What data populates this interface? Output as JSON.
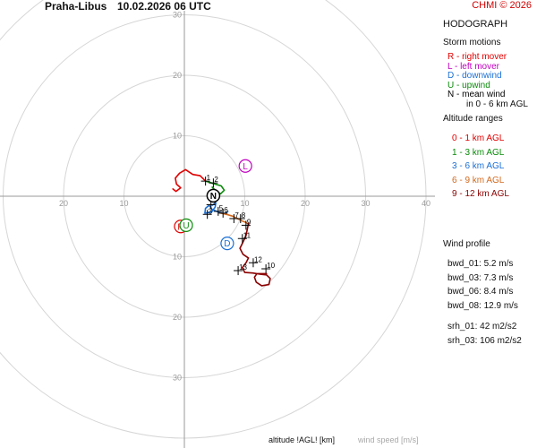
{
  "header": {
    "station": "Praha-Libus",
    "datetime": "10.02.2026 06 UTC",
    "copyright": "CHMI © 2026"
  },
  "panel": {
    "title": "HODOGRAPH",
    "storm_motions": {
      "title": "Storm motions",
      "items": [
        {
          "text": "R - right mover",
          "color": "#e00000"
        },
        {
          "text": "L - left mover",
          "color": "#c000c0"
        },
        {
          "text": "D - downwind",
          "color": "#1a6fd6"
        },
        {
          "text": "U - upwind",
          "color": "#0a8a0a"
        },
        {
          "text": "N - mean wind",
          "color": "#000000"
        }
      ],
      "mean_wind_note": "in 0 - 6 km AGL"
    },
    "altitude_ranges": {
      "title": "Altitude ranges",
      "items": [
        {
          "text": "0 - 1 km AGL",
          "color": "#e00000"
        },
        {
          "text": "1 - 3 km AGL",
          "color": "#0a8a0a"
        },
        {
          "text": "3 - 6 km AGL",
          "color": "#1a6fd6"
        },
        {
          "text": "6 - 9 km AGL",
          "color": "#d2691e"
        },
        {
          "text": "9 - 12 km AGL",
          "color": "#8b0000"
        }
      ]
    },
    "wind_profile": {
      "title": "Wind profile",
      "bwd": [
        "bwd_01: 5.2 m/s",
        "bwd_03: 7.3 m/s",
        "bwd_06: 8.4 m/s",
        "bwd_08: 12.9 m/s"
      ],
      "srh": [
        "srh_01: 42 m2/s2",
        "srh_03: 106 m2/s2"
      ]
    }
  },
  "footer": {
    "altitude_label": "altitude !AGL! [km]",
    "speed_label": "wind speed [m/s]"
  },
  "chart_data": {
    "type": "hodograph",
    "rings": [
      10,
      20,
      30,
      40
    ],
    "axis_labels": {
      "x": [
        "20",
        "10",
        "10",
        "20",
        "30",
        "40"
      ],
      "y": [
        "30",
        "20",
        "10",
        "10",
        "20",
        "30"
      ]
    },
    "axis_label_values": {
      "x": [
        -20,
        -10,
        10,
        20,
        30,
        40
      ],
      "y": [
        30,
        20,
        10,
        -10,
        -20,
        -30
      ]
    },
    "segments": [
      {
        "range": "0 - 1 km AGL",
        "color": "#e00000",
        "points": [
          [
            3.5,
            2.5
          ],
          [
            2.6,
            3.4
          ],
          [
            1.4,
            3.6
          ],
          [
            0.2,
            4.4
          ],
          [
            -0.8,
            3.8
          ],
          [
            -1.5,
            3.0
          ],
          [
            -1.3,
            2.0
          ],
          [
            -0.6,
            1.4
          ],
          [
            -1.4,
            0.8
          ],
          [
            -1.9,
            1.2
          ]
        ]
      },
      {
        "range": "1 - 3 km AGL",
        "color": "#0a8a0a",
        "points": [
          [
            3.5,
            2.5
          ],
          [
            4.8,
            2.1
          ],
          [
            6.1,
            1.7
          ],
          [
            6.6,
            1.0
          ],
          [
            6.0,
            0.4
          ],
          [
            5.2,
            0.9
          ],
          [
            4.6,
            1.5
          ]
        ]
      },
      {
        "range": "3 - 6 km AGL",
        "color": "#1a6fd6",
        "points": [
          [
            4.6,
            -1.5
          ],
          [
            5.2,
            -1.1
          ],
          [
            5.1,
            -1.8
          ],
          [
            4.5,
            -2.6
          ],
          [
            3.4,
            -2.8
          ],
          [
            3.5,
            -2.0
          ],
          [
            4.1,
            -1.5
          ],
          [
            4.6,
            -2.2
          ],
          [
            5.6,
            -2.6
          ],
          [
            6.6,
            -2.9
          ],
          [
            7.2,
            -2.5
          ]
        ]
      },
      {
        "range": "6 - 9 km AGL",
        "color": "#d2691e",
        "points": [
          [
            6.0,
            -2.8
          ],
          [
            7.0,
            -3.0
          ],
          [
            8.0,
            -3.3
          ],
          [
            8.8,
            -3.7
          ],
          [
            9.6,
            -4.1
          ],
          [
            10.1,
            -4.3
          ],
          [
            10.6,
            -4.6
          ]
        ]
      },
      {
        "range": "9 - 12 km AGL",
        "color": "#8b0000",
        "points": [
          [
            10.6,
            -4.5
          ],
          [
            10.2,
            -6.5
          ],
          [
            9.6,
            -7.8
          ],
          [
            9.2,
            -8.6
          ],
          [
            9.7,
            -9.6
          ],
          [
            10.6,
            -10.2
          ],
          [
            10.2,
            -11.0
          ],
          [
            9.6,
            -11.8
          ],
          [
            10.0,
            -12.6
          ],
          [
            11.3,
            -12.7
          ],
          [
            12.6,
            -12.9
          ],
          [
            13.6,
            -13.0
          ],
          [
            14.2,
            -13.6
          ],
          [
            14.0,
            -14.6
          ],
          [
            12.8,
            -14.8
          ],
          [
            11.9,
            -14.2
          ],
          [
            11.6,
            -13.4
          ],
          [
            12.0,
            -12.8
          ],
          [
            13.6,
            -12.8
          ]
        ]
      }
    ],
    "altitude_marks": [
      {
        "label": "1",
        "u": 3.5,
        "v": 2.5
      },
      {
        "label": "2",
        "u": 4.8,
        "v": 2.2
      },
      {
        "label": "3",
        "u": 3.8,
        "v": -3.0
      },
      {
        "label": "4",
        "u": 4.4,
        "v": -1.4
      },
      {
        "label": "5",
        "u": 5.6,
        "v": -2.5
      },
      {
        "label": "6",
        "u": 6.4,
        "v": -2.8
      },
      {
        "label": "7",
        "u": 8.2,
        "v": -3.7
      },
      {
        "label": "8",
        "u": 9.3,
        "v": -3.7
      },
      {
        "label": "9",
        "u": 10.2,
        "v": -4.8
      },
      {
        "label": "10",
        "u": 13.5,
        "v": -12.0
      },
      {
        "label": "11",
        "u": 9.6,
        "v": -7.0
      },
      {
        "label": "12",
        "u": 11.4,
        "v": -11.0
      },
      {
        "label": "13",
        "u": 8.9,
        "v": -12.3
      }
    ],
    "storm_motions": [
      {
        "label": "R",
        "u": -0.6,
        "v": -5.0,
        "color": "#e00000"
      },
      {
        "label": "L",
        "u": 10.1,
        "v": 5.0,
        "color": "#c000c0"
      },
      {
        "label": "D",
        "u": 7.1,
        "v": -7.8,
        "color": "#1a6fd6"
      },
      {
        "label": "U",
        "u": 0.3,
        "v": -4.8,
        "color": "#0a8a0a"
      },
      {
        "label": "N",
        "u": 4.8,
        "v": 0.1,
        "color": "#000000"
      }
    ]
  }
}
